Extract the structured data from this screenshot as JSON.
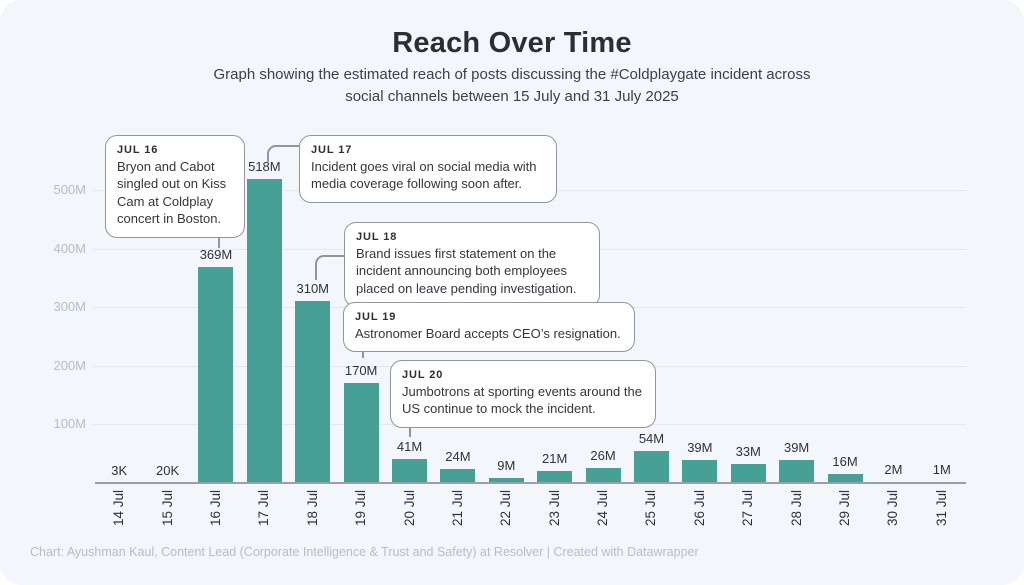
{
  "header": {
    "title": "Reach Over Time",
    "subtitle": "Graph showing the estimated reach of posts discussing the #Coldplaygate incident across social channels between 15 July and 31 July 2025"
  },
  "footer": {
    "credit": "Chart: Ayushman Kaul, Content Lead (Corporate Intelligence & Trust and Safety) at Resolver | Created with Datawrapper"
  },
  "colors": {
    "bar": "#46a095",
    "card_background": "#f3f6fa",
    "gridline": "#e3e8ee",
    "axis_line": "#9aa0a7",
    "y_label": "#b5bdc9",
    "text": "#2f3338",
    "annotation_border": "#90969e"
  },
  "chart_data": {
    "type": "bar",
    "title": "Reach Over Time",
    "xlabel": "",
    "ylabel": "",
    "grid": true,
    "ylim_millions": [
      0,
      560
    ],
    "y_ticks": [
      {
        "label": "100M",
        "value_millions": 100
      },
      {
        "label": "200M",
        "value_millions": 200
      },
      {
        "label": "300M",
        "value_millions": 300
      },
      {
        "label": "400M",
        "value_millions": 400
      },
      {
        "label": "500M",
        "value_millions": 500
      }
    ],
    "categories": [
      "14 Jul",
      "15 Jul",
      "16 Jul",
      "17 Jul",
      "18 Jul",
      "19 Jul",
      "20 Jul",
      "21 Jul",
      "22 Jul",
      "23 Jul",
      "24 Jul",
      "25 Jul",
      "26 Jul",
      "27 Jul",
      "28 Jul",
      "29 Jul",
      "30 Jul",
      "31 Jul"
    ],
    "values_millions": [
      0.003,
      0.02,
      369,
      518,
      310,
      170,
      41,
      24,
      9,
      21,
      26,
      54,
      39,
      33,
      39,
      16,
      2,
      1
    ],
    "value_labels": [
      "3K",
      "20K",
      "369M",
      "518M",
      "310M",
      "170M",
      "41M",
      "24M",
      "9M",
      "21M",
      "26M",
      "54M",
      "39M",
      "33M",
      "39M",
      "16M",
      "2M",
      "1M"
    ],
    "annotations": [
      {
        "label": "JUL 16",
        "text": "Bryon and Cabot singled out on Kiss Cam at Coldplay concert in Boston."
      },
      {
        "label": "JUL 17",
        "text": "Incident goes viral on social media with media coverage following soon after."
      },
      {
        "label": "JUL 18",
        "text": "Brand issues first statement on the incident announcing both employees placed on leave pending investigation."
      },
      {
        "label": "JUL 19",
        "text": "Astronomer Board accepts CEO’s resignation."
      },
      {
        "label": "JUL 20",
        "text": "Jumbotrons at sporting events around the US continue to mock the incident."
      }
    ]
  }
}
